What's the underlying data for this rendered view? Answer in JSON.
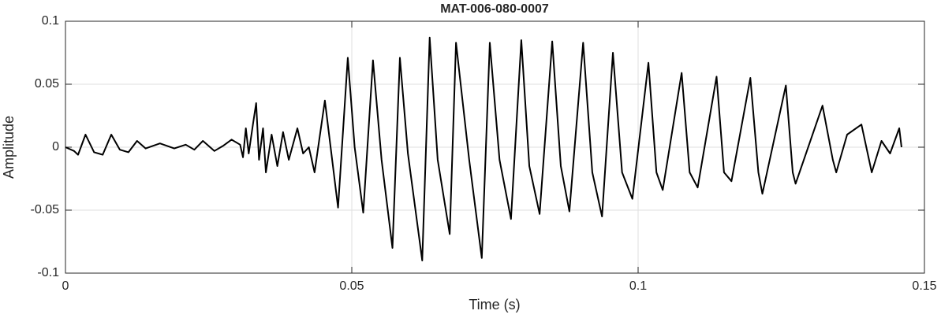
{
  "chart_data": {
    "type": "line",
    "title": "MAT-006-080-0007",
    "xlabel": "Time (s)",
    "ylabel": "Amplitude",
    "x": [
      0,
      0.0015,
      0.0022,
      0.0035,
      0.005,
      0.0065,
      0.008,
      0.0095,
      0.011,
      0.0125,
      0.014,
      0.0165,
      0.019,
      0.021,
      0.0225,
      0.024,
      0.026,
      0.0275,
      0.029,
      0.0305,
      0.031,
      0.0315,
      0.032,
      0.0328,
      0.0333,
      0.0338,
      0.0345,
      0.035,
      0.036,
      0.037,
      0.038,
      0.039,
      0.0405,
      0.0415,
      0.0425,
      0.0435,
      0.0453,
      0.0476,
      0.0493,
      0.0505,
      0.052,
      0.0537,
      0.0552,
      0.0571,
      0.0584,
      0.0598,
      0.0623,
      0.0636,
      0.065,
      0.0671,
      0.0682,
      0.0705,
      0.0727,
      0.0741,
      0.0758,
      0.0778,
      0.0796,
      0.081,
      0.0828,
      0.085,
      0.0865,
      0.088,
      0.0904,
      0.092,
      0.0937,
      0.0956,
      0.0972,
      0.099,
      0.1018,
      0.1032,
      0.1043,
      0.1076,
      0.109,
      0.1104,
      0.1137,
      0.115,
      0.1163,
      0.1196,
      0.121,
      0.1217,
      0.1258,
      0.127,
      0.1275,
      0.1322,
      0.134,
      0.1346,
      0.1365,
      0.139,
      0.1408,
      0.1425,
      0.144,
      0.1456,
      0.146
    ],
    "series": [
      {
        "color": "#000000",
        "values": [
          0,
          -0.003,
          -0.006,
          0.01,
          -0.004,
          -0.006,
          0.01,
          -0.002,
          -0.004,
          0.005,
          -0.001,
          0.003,
          -0.001,
          0.002,
          -0.002,
          0.005,
          -0.003,
          0.001,
          0.006,
          0.002,
          -0.008,
          0.015,
          -0.005,
          0.02,
          0.035,
          -0.01,
          0.015,
          -0.02,
          0.01,
          -0.015,
          0.012,
          -0.01,
          0.015,
          -0.005,
          0,
          -0.02,
          0.037,
          -0.048,
          0.071,
          0,
          -0.052,
          0.069,
          -0.01,
          -0.08,
          0.071,
          -0.005,
          -0.09,
          0.087,
          -0.01,
          -0.069,
          0.083,
          -0.01,
          -0.088,
          0.083,
          -0.01,
          -0.057,
          0.085,
          -0.015,
          -0.053,
          0.084,
          -0.015,
          -0.051,
          0.083,
          -0.02,
          -0.055,
          0.075,
          -0.02,
          -0.041,
          0.067,
          -0.02,
          -0.034,
          0.059,
          -0.02,
          -0.032,
          0.056,
          -0.02,
          -0.027,
          0.055,
          -0.02,
          -0.037,
          0.049,
          -0.02,
          -0.029,
          0.033,
          -0.01,
          -0.02,
          0.01,
          0.018,
          -0.02,
          0.005,
          -0.005,
          0.015,
          0
        ]
      }
    ],
    "xlim": [
      0,
      0.15
    ],
    "xticks": [
      0,
      0.05,
      0.1,
      0.15
    ],
    "ylim": [
      -0.1,
      0.1
    ],
    "yticks": [
      -0.1,
      -0.05,
      0,
      0.05,
      0.1
    ],
    "grid": true
  }
}
